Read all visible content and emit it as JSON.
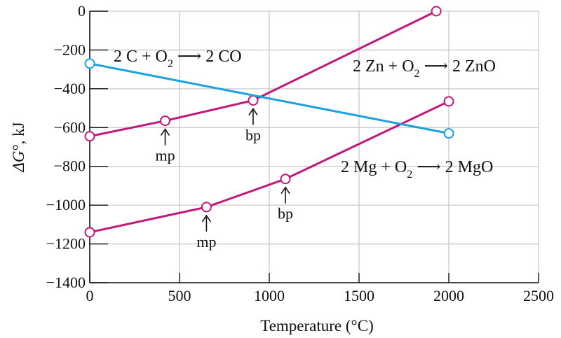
{
  "chart_data": {
    "type": "line",
    "xlabel": "Temperature (°C)",
    "ylabel_parts": [
      "ΔG",
      "°, kJ"
    ],
    "xlim": [
      0,
      2500
    ],
    "ylim": [
      -1400,
      0
    ],
    "xticks": [
      0,
      500,
      1000,
      1500,
      2000,
      2500
    ],
    "yticks": [
      0,
      -200,
      -400,
      -600,
      -800,
      -1000,
      -1200,
      -1400
    ],
    "grid": true,
    "series": [
      {
        "name": "2 Zn + O2 → 2 ZnO",
        "color": "#c2187c",
        "x": [
          0,
          420,
          910,
          1930
        ],
        "y": [
          -645,
          -565,
          -460,
          0
        ]
      },
      {
        "name": "2 Mg + O2 → 2 MgO",
        "color": "#c2187c",
        "x": [
          0,
          650,
          1090,
          2000
        ],
        "y": [
          -1140,
          -1010,
          -865,
          -465
        ]
      },
      {
        "name": "2 C + O2 → 2 CO",
        "color": "#1ba0e0",
        "x": [
          0,
          2000
        ],
        "y": [
          -270,
          -630
        ]
      }
    ],
    "equation_labels": [
      {
        "series": 2,
        "parts": [
          "2 C + O",
          "2",
          " ⟶ 2 CO"
        ]
      },
      {
        "series": 0,
        "parts": [
          "2 Zn + O",
          "2",
          " ⟶ 2 ZnO"
        ]
      },
      {
        "series": 1,
        "parts": [
          "2 Mg + O",
          "2",
          " ⟶ 2 MgO"
        ]
      }
    ],
    "phase_markers": [
      {
        "label": "mp",
        "x": 420,
        "y": -565
      },
      {
        "label": "bp",
        "x": 910,
        "y": -460
      },
      {
        "label": "mp",
        "x": 650,
        "y": -1010
      },
      {
        "label": "bp",
        "x": 1090,
        "y": -865
      }
    ]
  }
}
